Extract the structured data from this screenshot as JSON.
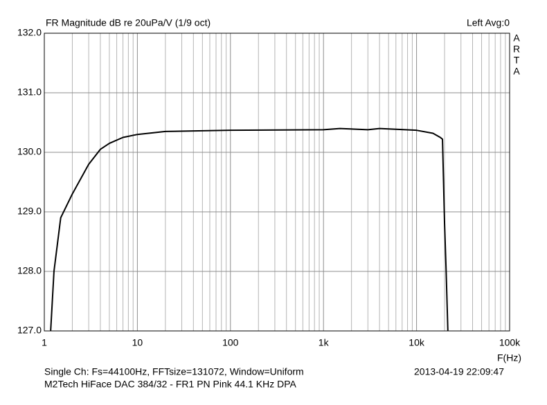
{
  "chart_data": {
    "type": "line",
    "title": "FR Magnitude dB re 20uPa/V (1/9 oct)",
    "channel_info": "Left  Avg:0",
    "brand_letters": [
      "A",
      "R",
      "T",
      "A"
    ],
    "x_label": "F(Hz)",
    "footer_line1": "Single Ch: Fs=44100Hz, FFTsize=131072, Window=Uniform",
    "timestamp": "2013-04-19  22:09:47",
    "footer_line2": "M2Tech HiFace DAC 384/32 - FR1 PN Pink 44.1 KHz     DPA",
    "x_log_scale": true,
    "grid": true,
    "xlim": [
      1,
      100000
    ],
    "ylim": [
      127,
      132
    ],
    "xticks": [
      1,
      10,
      100,
      {
        "value": 1000,
        "label": "1k"
      },
      {
        "value": 10000,
        "label": "10k"
      },
      {
        "value": 100000,
        "label": "100k"
      }
    ],
    "yticks": [
      {
        "value": 127,
        "label": "127.0"
      },
      {
        "value": 128,
        "label": "128.0"
      },
      {
        "value": 129,
        "label": "129.0"
      },
      {
        "value": 130,
        "label": "130.0"
      },
      {
        "value": 131,
        "label": "131.0"
      },
      {
        "value": 132,
        "label": "132.0"
      }
    ],
    "series": [
      {
        "color": "#000000",
        "x": [
          1.17,
          1.27,
          1.5,
          2,
          3,
          4,
          5,
          7,
          10,
          20,
          100,
          1000,
          1500,
          3000,
          4000,
          10000,
          15000,
          18000,
          19000,
          19500,
          20000,
          20800,
          21700
        ],
        "values": [
          127.0,
          128.0,
          128.9,
          129.3,
          129.8,
          130.05,
          130.15,
          130.25,
          130.3,
          130.35,
          130.37,
          130.38,
          130.4,
          130.38,
          130.4,
          130.37,
          130.32,
          130.25,
          130.22,
          129.5,
          128.8,
          128.0,
          127.0
        ]
      }
    ]
  }
}
